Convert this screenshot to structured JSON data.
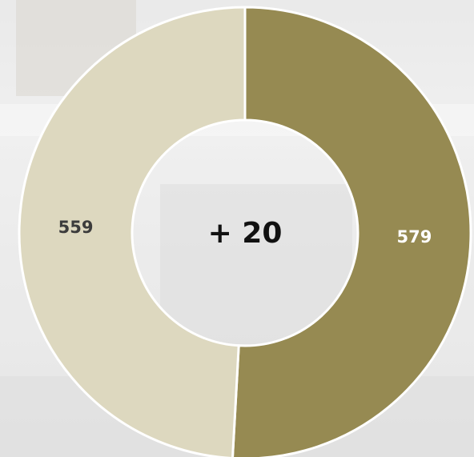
{
  "chart_data": {
    "type": "pie",
    "donut": true,
    "values": [
      579,
      559
    ],
    "colors": [
      "#968a52",
      "#ddd8bf"
    ],
    "label_colors": [
      "#ffffff",
      "#3c3c3c"
    ],
    "center_label": "+ 20"
  }
}
